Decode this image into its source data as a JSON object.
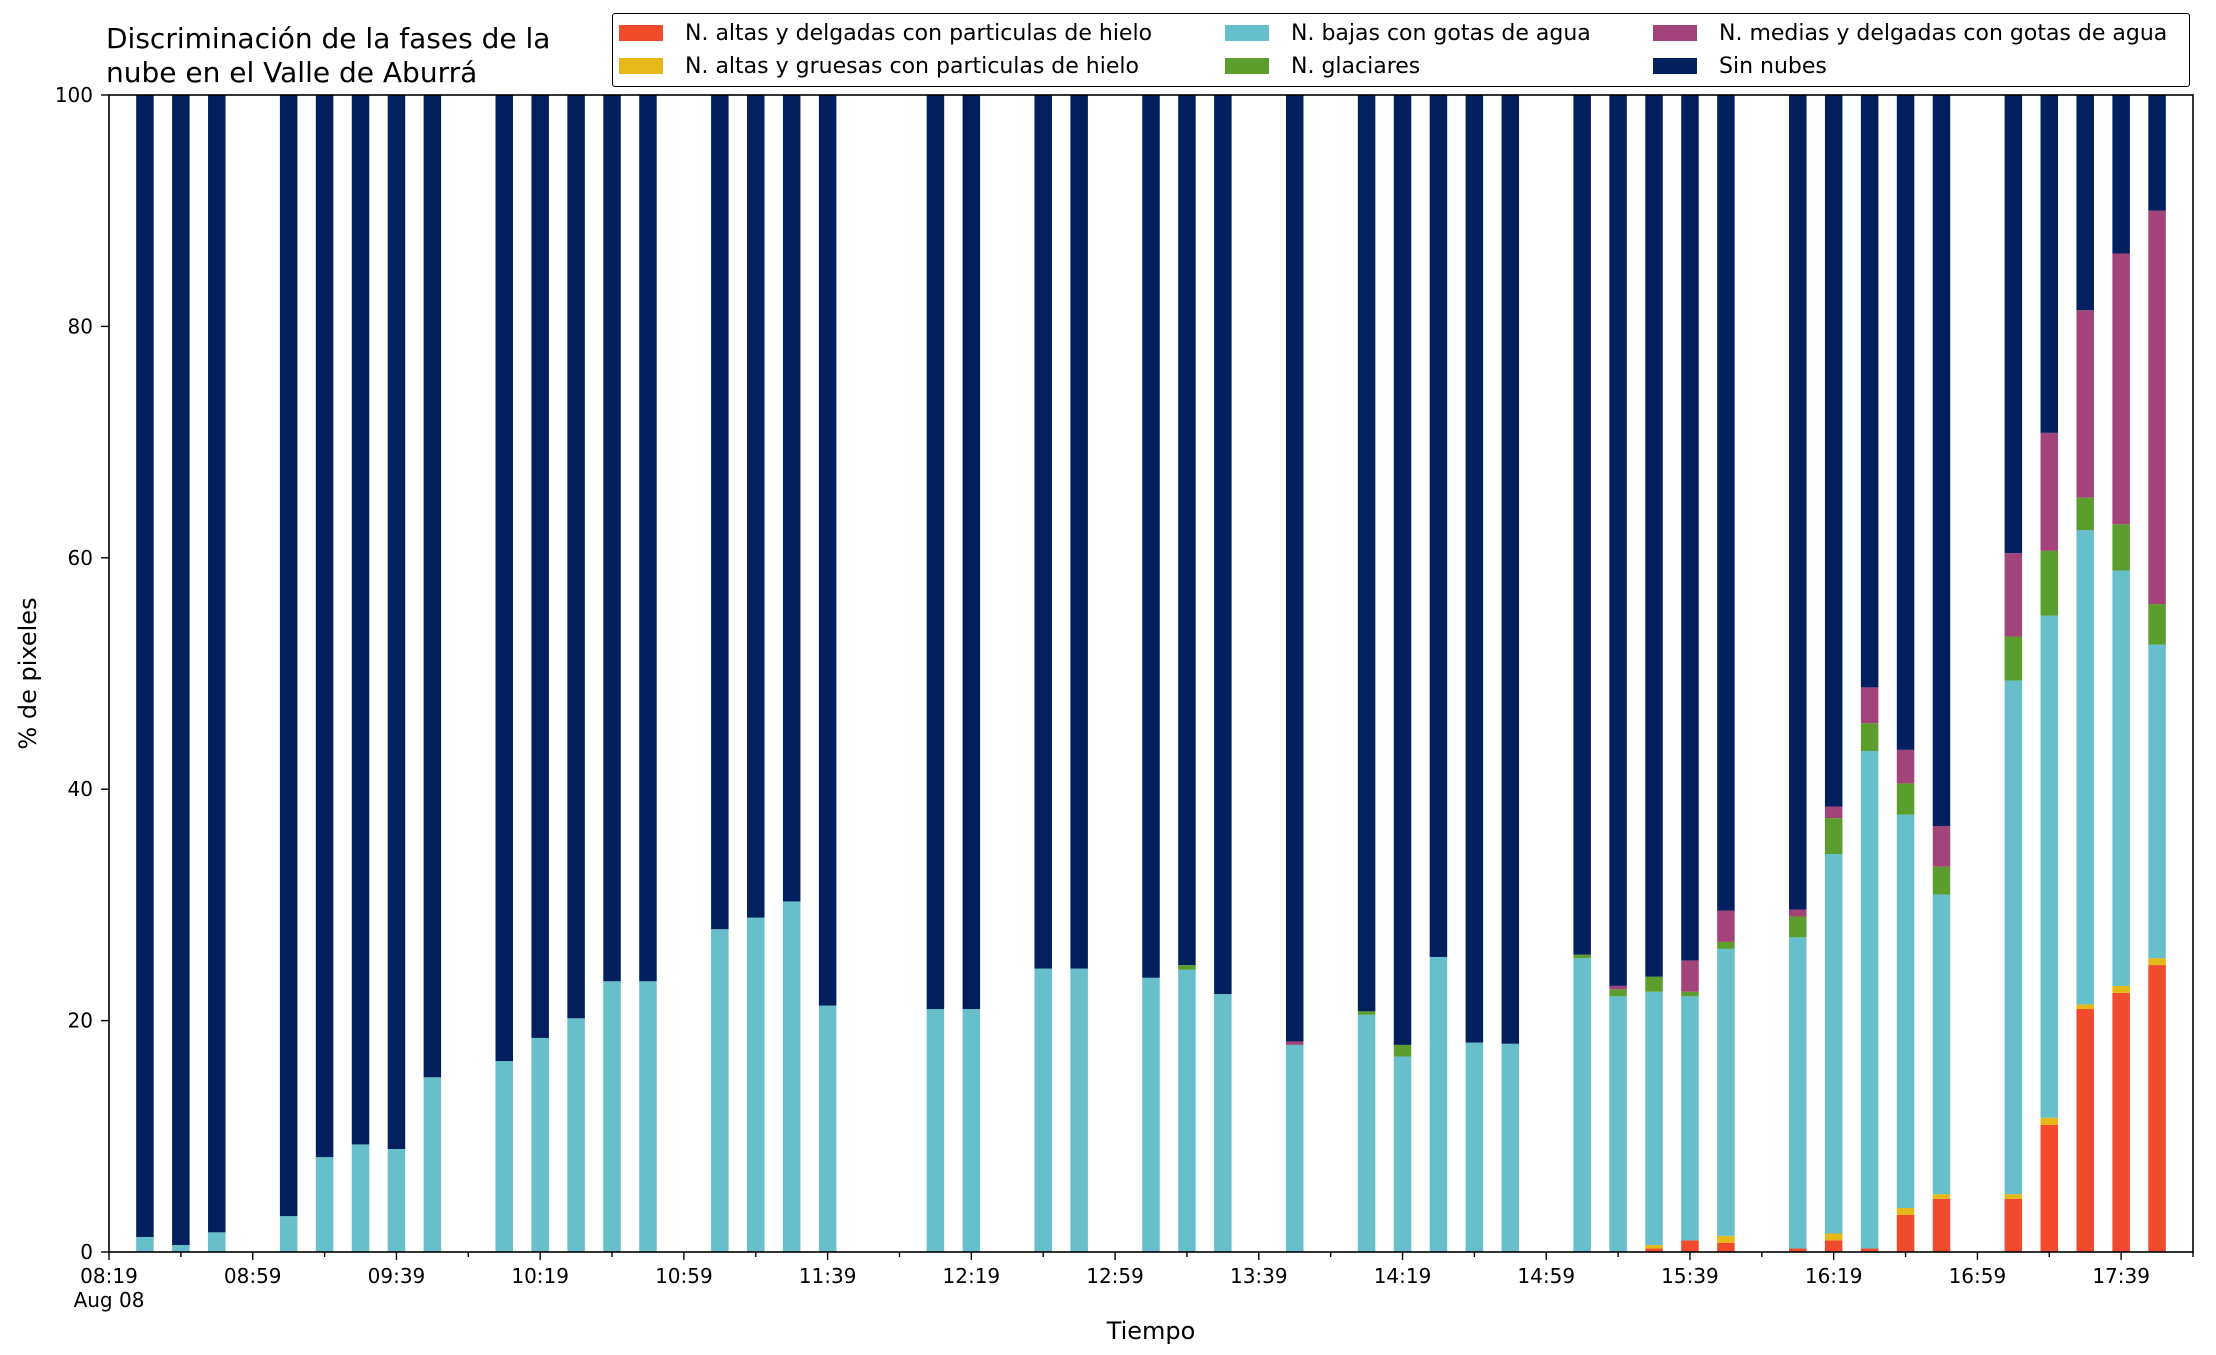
{
  "chart_data": {
    "type": "bar",
    "stacked": true,
    "title": "Discriminación de la fases de la\nnube en el Valle de Aburrá",
    "xlabel": "Tiempo",
    "ylabel": "% de pixeles",
    "ylim": [
      0,
      100
    ],
    "yticks": [
      0,
      20,
      40,
      60,
      80,
      100
    ],
    "xlim": [
      "08:19",
      "17:59"
    ],
    "xtick_labels": [
      "08:19",
      "08:59",
      "09:39",
      "10:19",
      "10:59",
      "11:39",
      "12:19",
      "12:59",
      "13:39",
      "14:19",
      "14:59",
      "15:39",
      "16:19",
      "16:59",
      "17:39"
    ],
    "xtick_sublabel": "Aug 08",
    "legend_position": "top-right",
    "grid": false,
    "x": [
      "08:29",
      "08:39",
      "08:49",
      "09:09",
      "09:19",
      "09:29",
      "09:39",
      "09:49",
      "10:09",
      "10:19",
      "10:29",
      "10:39",
      "10:49",
      "11:09",
      "11:19",
      "11:29",
      "11:39",
      "12:09",
      "12:19",
      "12:39",
      "12:49",
      "13:09",
      "13:19",
      "13:29",
      "13:49",
      "14:09",
      "14:19",
      "14:29",
      "14:39",
      "14:49",
      "15:09",
      "15:19",
      "15:29",
      "15:39",
      "15:49",
      "16:09",
      "16:19",
      "16:29",
      "16:39",
      "16:49",
      "17:09",
      "17:19",
      "17:29",
      "17:39",
      "17:49"
    ],
    "series": [
      {
        "name": "N. altas y delgadas con particulas de hielo",
        "color": "#ef4b2c",
        "values": [
          0,
          0,
          0,
          0,
          0,
          0,
          0,
          0,
          0,
          0,
          0,
          0,
          0,
          0,
          0,
          0,
          0,
          0,
          0,
          0,
          0,
          0,
          0,
          0,
          0,
          0,
          0,
          0,
          0,
          0,
          0,
          0,
          0.3,
          1.0,
          0.8,
          0.3,
          1.0,
          0.3,
          3.2,
          4.6,
          4.6,
          11.0,
          21.0,
          22.4,
          24.8
        ]
      },
      {
        "name": "N. altas y gruesas con particulas de hielo",
        "color": "#e6b818",
        "values": [
          0,
          0,
          0,
          0,
          0,
          0,
          0,
          0,
          0,
          0,
          0,
          0,
          0,
          0,
          0,
          0,
          0,
          0,
          0,
          0,
          0,
          0,
          0,
          0,
          0,
          0,
          0,
          0,
          0,
          0,
          0,
          0,
          0.3,
          0,
          0.6,
          0,
          0.6,
          0,
          0.6,
          0.4,
          0.4,
          0.6,
          0.4,
          0.6,
          0.6
        ]
      },
      {
        "name": "N. bajas con gotas de agua",
        "color": "#66bfca",
        "values": [
          1.3,
          0.6,
          1.7,
          3.1,
          8.2,
          9.3,
          8.9,
          15.1,
          16.5,
          18.5,
          20.2,
          23.4,
          23.4,
          27.9,
          28.9,
          30.3,
          21.3,
          21.0,
          21.0,
          24.5,
          24.5,
          23.7,
          24.4,
          22.3,
          17.9,
          20.5,
          16.9,
          25.5,
          18.1,
          18.0,
          25.4,
          22.1,
          21.9,
          21.1,
          24.8,
          26.9,
          32.8,
          43.0,
          34.0,
          25.9,
          44.4,
          43.4,
          41.0,
          35.9,
          27.1
        ]
      },
      {
        "name": "N. glaciares",
        "color": "#5b9e2e",
        "values": [
          0,
          0,
          0,
          0,
          0,
          0,
          0,
          0,
          0,
          0,
          0,
          0,
          0,
          0,
          0,
          0,
          0,
          0,
          0,
          0,
          0,
          0,
          0.4,
          0,
          0,
          0.3,
          1.0,
          0,
          0,
          0,
          0.3,
          0.6,
          1.3,
          0.4,
          0.6,
          1.8,
          3.1,
          2.4,
          2.7,
          2.4,
          3.8,
          5.6,
          2.8,
          4.0,
          3.5
        ]
      },
      {
        "name": "N. medias y delgadas con gotas de agua",
        "color": "#a2437a",
        "values": [
          0,
          0,
          0,
          0,
          0,
          0,
          0,
          0,
          0,
          0,
          0,
          0,
          0,
          0,
          0,
          0,
          0,
          0,
          0,
          0,
          0,
          0,
          0,
          0,
          0.3,
          0,
          0,
          0,
          0,
          0,
          0,
          0.3,
          0,
          2.7,
          2.7,
          0.6,
          1.0,
          3.1,
          2.9,
          3.5,
          7.2,
          10.2,
          16.2,
          23.4,
          34.0
        ]
      },
      {
        "name": "Sin nubes",
        "color": "#021f5e",
        "values": [
          98.7,
          99.4,
          98.3,
          96.9,
          91.8,
          90.7,
          91.1,
          84.9,
          83.5,
          81.5,
          79.8,
          76.6,
          76.6,
          72.1,
          71.1,
          69.7,
          78.7,
          79.0,
          79.0,
          75.5,
          75.5,
          76.3,
          75.2,
          77.7,
          81.8,
          79.2,
          82.1,
          74.5,
          81.9,
          82.0,
          74.3,
          77.0,
          76.2,
          74.8,
          70.5,
          70.4,
          61.5,
          51.2,
          56.6,
          63.2,
          39.6,
          29.2,
          18.6,
          13.7,
          10.0
        ]
      }
    ]
  }
}
